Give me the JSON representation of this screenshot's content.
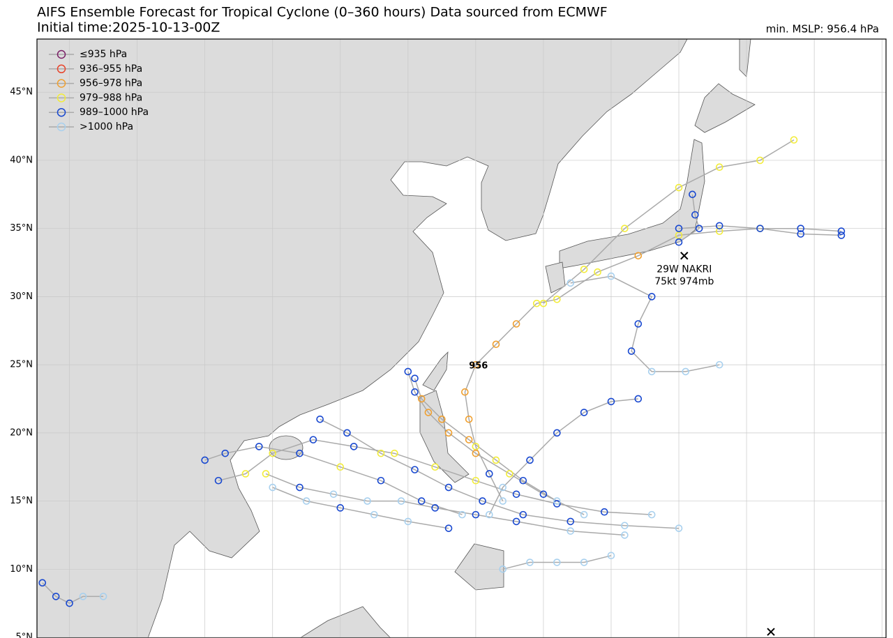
{
  "chart_data": {
    "type": "track-map",
    "title": "AIFS Ensemble Forecast for Tropical Cyclone (0–360 hours) Data sourced from ECMWF",
    "subtitle": "Initial time:2025-10-13-00Z",
    "min_label": "min. MSLP: 956.4 hPa",
    "xlim": [
      92.6,
      155.3
    ],
    "ylim": [
      4.95,
      48.9
    ],
    "xticks": [
      95,
      100,
      105,
      110,
      115,
      120,
      125,
      130,
      135,
      140,
      145,
      150,
      155
    ],
    "yticks": [
      {
        "value": 5,
        "label": "5°N"
      },
      {
        "value": 10,
        "label": "10°N"
      },
      {
        "value": 15,
        "label": "15°N"
      },
      {
        "value": 20,
        "label": "20°N"
      },
      {
        "value": 25,
        "label": "25°N"
      },
      {
        "value": 30,
        "label": "30°N"
      },
      {
        "value": 35,
        "label": "35°N"
      },
      {
        "value": 40,
        "label": "40°N"
      },
      {
        "value": 45,
        "label": "45°N"
      }
    ],
    "grid": true,
    "legend": "upper left",
    "track_color": "#aaaaaa",
    "classes": [
      {
        "name": "≤935 hPa",
        "color": "#7a1f66"
      },
      {
        "name": "936–955 hPa",
        "color": "#e8452c"
      },
      {
        "name": "956–978 hPa",
        "color": "#f0a030"
      },
      {
        "name": "979–988 hPa",
        "color": "#f2ec3a"
      },
      {
        "name": "989–1000 hPa",
        "color": "#1848d0"
      },
      {
        "name": ">1000 hPa",
        "color": "#a8d0ee"
      }
    ],
    "tracks": [
      {
        "lon": [
          127,
          126,
          125,
          124.5,
          124.2,
          125,
          126.5,
          128,
          129.5,
          131,
          134,
          137,
          140,
          143,
          146,
          149,
          152
        ],
        "lat": [
          15,
          17,
          19,
          21,
          23,
          25,
          26.5,
          28,
          29.5,
          29.8,
          31.8,
          33,
          34.5,
          34.8,
          35,
          35,
          34.8
        ],
        "class": [
          5,
          4,
          3,
          2,
          2,
          2,
          2,
          2,
          3,
          3,
          3,
          2,
          3,
          3,
          3,
          4,
          4
        ]
      },
      {
        "lon": [
          133,
          130,
          127.5,
          125,
          123,
          121.5,
          120.5,
          120
        ],
        "lat": [
          14,
          15.5,
          17,
          18.5,
          20,
          21.5,
          23,
          24.5
        ],
        "class": [
          5,
          4,
          3,
          2,
          2,
          2,
          4,
          4
        ]
      },
      {
        "lon": [
          138,
          134.5,
          131,
          128,
          125,
          122,
          119,
          116,
          113,
          110,
          108,
          106
        ],
        "lat": [
          14,
          14.2,
          14.8,
          15.5,
          16.5,
          17.5,
          18.5,
          19,
          19.5,
          18.5,
          17,
          16.5
        ],
        "class": [
          5,
          4,
          4,
          4,
          3,
          3,
          3,
          4,
          4,
          3,
          3,
          4
        ]
      },
      {
        "lon": [
          140,
          136,
          132,
          128.5,
          125.5,
          123,
          120.5,
          118,
          115.5,
          113.5
        ],
        "lat": [
          13,
          13.2,
          13.5,
          14,
          15,
          16,
          17.3,
          18.5,
          20,
          21
        ],
        "class": [
          5,
          5,
          4,
          4,
          4,
          4,
          4,
          3,
          4,
          4
        ]
      },
      {
        "lon": [
          136,
          132,
          128,
          125,
          122,
          119.5,
          117,
          114.5,
          112,
          109.5
        ],
        "lat": [
          12.5,
          12.8,
          13.5,
          14,
          14.5,
          15,
          15,
          15.5,
          16,
          17
        ],
        "class": [
          5,
          5,
          4,
          4,
          4,
          5,
          5,
          5,
          4,
          3
        ]
      },
      {
        "lon": [
          131,
          128.5,
          126.5,
          124.5,
          122.5,
          121,
          120.5
        ],
        "lat": [
          15,
          16.5,
          18,
          19.5,
          21,
          22.5,
          24
        ],
        "class": [
          5,
          4,
          3,
          2,
          2,
          2,
          4
        ]
      },
      {
        "lon": [
          126,
          127,
          129,
          131,
          133,
          135,
          137
        ],
        "lat": [
          14,
          16,
          18,
          20,
          21.5,
          22.3,
          22.5
        ],
        "class": [
          5,
          5,
          4,
          4,
          4,
          4,
          4
        ]
      },
      {
        "lon": [
          132,
          135,
          138,
          137,
          136.5,
          138,
          140.5,
          143
        ],
        "lat": [
          31,
          31.5,
          30,
          28,
          26,
          24.5,
          24.5,
          25
        ],
        "class": [
          5,
          5,
          4,
          4,
          4,
          5,
          5,
          5
        ]
      },
      {
        "lon": [
          124,
          121,
          118,
          115,
          112,
          109,
          106.5,
          105
        ],
        "lat": [
          14,
          15,
          16.5,
          17.5,
          18.5,
          19,
          18.5,
          18
        ],
        "class": [
          5,
          4,
          4,
          3,
          4,
          4,
          4,
          4
        ]
      },
      {
        "lon": [
          130,
          133,
          136,
          140,
          143,
          146,
          148.5
        ],
        "lat": [
          29.5,
          32,
          35,
          38,
          39.5,
          40,
          41.5
        ],
        "class": [
          3,
          3,
          3,
          3,
          3,
          3,
          3
        ]
      },
      {
        "lon": [
          127,
          129,
          131,
          133,
          135
        ],
        "lat": [
          10,
          10.5,
          10.5,
          10.5,
          11
        ],
        "class": [
          5,
          5,
          5,
          5,
          5
        ]
      },
      {
        "lon": [
          93,
          94,
          95,
          96,
          97.5
        ],
        "lat": [
          9,
          8,
          7.5,
          8,
          8
        ],
        "class": [
          4,
          4,
          4,
          5,
          5
        ]
      },
      {
        "lon": [
          123,
          120,
          117.5,
          115,
          112.5,
          110
        ],
        "lat": [
          13,
          13.5,
          14,
          14.5,
          15,
          16
        ],
        "class": [
          4,
          5,
          5,
          4,
          5,
          5
        ]
      },
      {
        "lon": [
          140,
          143,
          146,
          149,
          152
        ],
        "lat": [
          35,
          35.2,
          35,
          34.6,
          34.5
        ],
        "class": [
          4,
          4,
          4,
          4,
          4
        ]
      },
      {
        "lon": [
          141,
          141.2,
          141.5,
          140
        ],
        "lat": [
          37.5,
          36,
          35,
          34
        ],
        "class": [
          4,
          4,
          4,
          4
        ]
      }
    ],
    "markers": [
      {
        "lon": 140.4,
        "lat": 33.0
      },
      {
        "lon": 146.8,
        "lat": 5.4
      }
    ],
    "annotations": [
      {
        "text": "956",
        "lon": 125.2,
        "lat": 24.9
      },
      {
        "text": "29W NAKRI",
        "lon": 140.4,
        "lat": 32.0
      },
      {
        "text": "75kt 974mb",
        "lon": 140.4,
        "lat": 31.1
      }
    ]
  }
}
